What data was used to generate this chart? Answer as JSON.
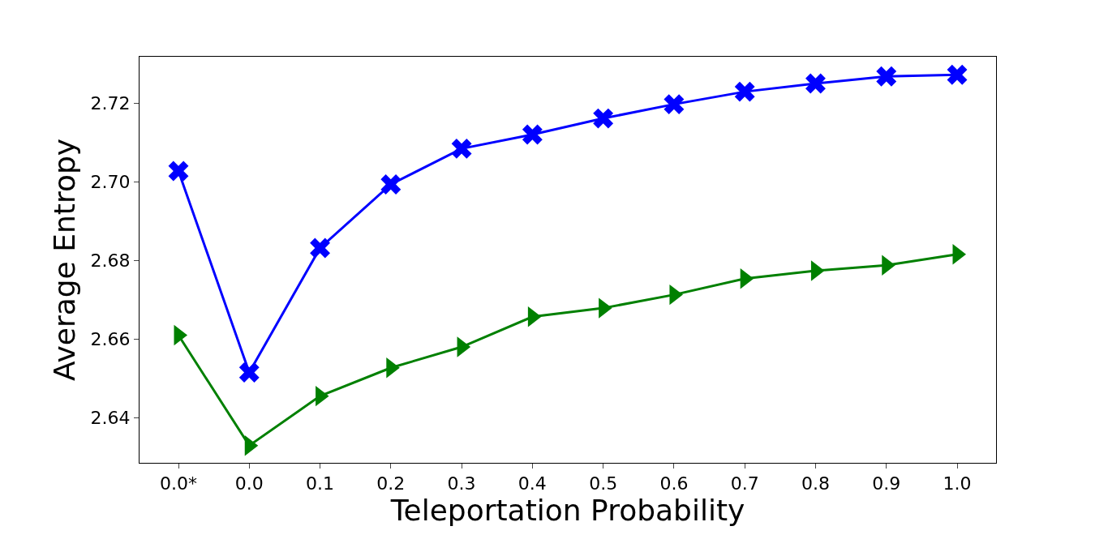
{
  "chart_data": {
    "type": "line",
    "xlabel": "Teleportation Probability",
    "ylabel": "Average Entropy",
    "categories": [
      "0.0*",
      "0.0",
      "0.1",
      "0.2",
      "0.3",
      "0.4",
      "0.5",
      "0.6",
      "0.7",
      "0.8",
      "0.9",
      "1.0"
    ],
    "series": [
      {
        "color": "#0000ff",
        "marker": "cross",
        "values": [
          2.7028,
          2.6515,
          2.6832,
          2.6994,
          2.7085,
          2.7121,
          2.7162,
          2.7198,
          2.723,
          2.7251,
          2.7269,
          2.7273
        ]
      },
      {
        "color": "#008000",
        "marker": "triangle",
        "values": [
          2.661,
          2.6329,
          2.6455,
          2.6527,
          2.658,
          2.6657,
          2.6679,
          2.6713,
          2.6754,
          2.6774,
          2.6788,
          2.6816
        ]
      }
    ],
    "ylim": [
      2.6285,
      2.7319
    ],
    "yticks": [
      {
        "value": 2.64,
        "label": "2.64"
      },
      {
        "value": 2.66,
        "label": "2.66"
      },
      {
        "value": 2.68,
        "label": "2.68"
      },
      {
        "value": 2.7,
        "label": "2.70"
      },
      {
        "value": 2.72,
        "label": "2.72"
      }
    ],
    "line_style": "solid"
  }
}
